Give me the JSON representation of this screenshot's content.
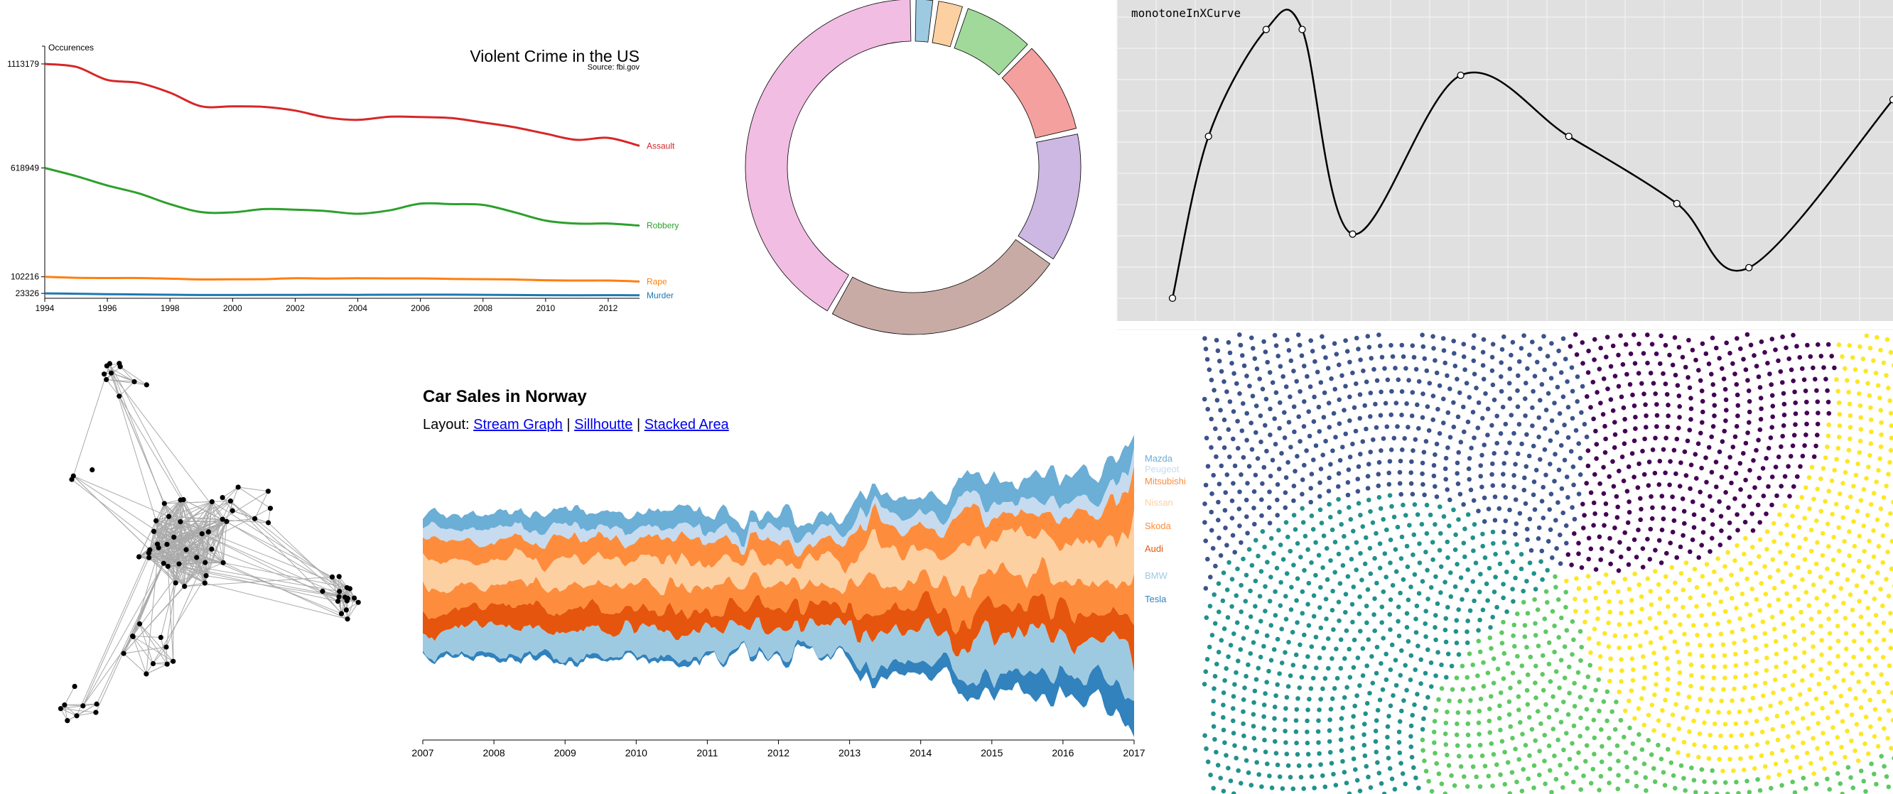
{
  "crime": {
    "chart_data": {
      "type": "line",
      "title": "Violent Crime in the US",
      "subtitle": "Source: fbi.gov",
      "ylabel": "Occurences",
      "x": [
        1994,
        1995,
        1996,
        1997,
        1998,
        1999,
        2000,
        2001,
        2002,
        2003,
        2004,
        2005,
        2006,
        2007,
        2008,
        2009,
        2010,
        2011,
        2012,
        2013
      ],
      "x_ticks": [
        "1994",
        "1996",
        "1998",
        "2000",
        "2002",
        "2004",
        "2006",
        "2008",
        "2010",
        "2012"
      ],
      "y_ticks": [
        "1113179",
        "618949",
        "102216",
        "23326"
      ],
      "ylim": [
        0,
        1113179
      ],
      "series": [
        {
          "name": "Assault",
          "color": "#d62728",
          "values": [
            1113179,
            1099207,
            1037049,
            1023201,
            976583,
            911740,
            911706,
            909023,
            891407,
            859030,
            847381,
            862220,
            860853,
            855856,
            834885,
            812514,
            781844,
            752423,
            762009,
            724149
          ]
        },
        {
          "name": "Robbery",
          "color": "#2ca02c",
          "values": [
            618949,
            580509,
            535594,
            498534,
            447186,
            409371,
            408016,
            423557,
            420806,
            414235,
            401470,
            417438,
            449246,
            447324,
            443563,
            408742,
            369089,
            354746,
            355051,
            345031
          ]
        },
        {
          "name": "Rape",
          "color": "#ff7f0e",
          "values": [
            102216,
            97470,
            96252,
            96153,
            93144,
            89411,
            90178,
            90863,
            95235,
            93883,
            95089,
            94347,
            94472,
            92160,
            90750,
            89241,
            85593,
            84175,
            84376,
            79770
          ]
        },
        {
          "name": "Murder",
          "color": "#1f77b4",
          "values": [
            23326,
            21606,
            19645,
            18208,
            16974,
            15522,
            15586,
            16037,
            16229,
            16528,
            16148,
            16740,
            17309,
            17128,
            16465,
            15399,
            14722,
            14661,
            14866,
            14196
          ]
        }
      ]
    }
  },
  "donut": {
    "chart_data": {
      "type": "pie",
      "values": [
        3,
        4,
        10,
        13,
        18,
        33,
        58
      ],
      "colors": [
        "#9ecae1",
        "#fdd0a2",
        "#a1d99b",
        "#f4a09f",
        "#ccb8e2",
        "#c9aba6",
        "#f2bde2"
      ]
    }
  },
  "curve": {
    "label": "monotoneInXCurve",
    "chart_data": {
      "type": "line",
      "x": [
        0,
        0.05,
        0.13,
        0.18,
        0.25,
        0.4,
        0.55,
        0.7,
        0.8,
        1.0
      ],
      "y": [
        0.07,
        0.6,
        0.95,
        0.95,
        0.28,
        0.8,
        0.6,
        0.38,
        0.17,
        0.72
      ],
      "xlim": [
        0,
        1
      ],
      "ylim": [
        0,
        1
      ],
      "grid": true
    }
  },
  "network": {
    "chart_data": {
      "type": "network",
      "node_count": 90
    }
  },
  "cars": {
    "title": "Car Sales in Norway",
    "layout_label": "Layout:",
    "links": [
      "Stream Graph",
      "Sillhoutte",
      "Stacked Area"
    ],
    "separator": "|",
    "chart_data": {
      "type": "area",
      "layout": "stream",
      "x_ticks": [
        "2007",
        "2008",
        "2009",
        "2010",
        "2011",
        "2012",
        "2013",
        "2014",
        "2015",
        "2016",
        "2017"
      ],
      "series": [
        {
          "name": "Tesla",
          "color": "#3182bd"
        },
        {
          "name": "BMW",
          "color": "#9ecae1"
        },
        {
          "name": "Audi",
          "color": "#e6550d"
        },
        {
          "name": "Skoda",
          "color": "#fd8d3c"
        },
        {
          "name": "Nissan",
          "color": "#fdd0a2"
        },
        {
          "name": "Mitsubishi",
          "color": "#fd8d3c"
        },
        {
          "name": "Peugeot",
          "color": "#c6dbef"
        },
        {
          "name": "Mazda",
          "color": "#6baed6"
        }
      ]
    }
  },
  "spiral": {
    "chart_data": {
      "type": "scatter",
      "layout": "phyllotaxis",
      "colors": [
        "#440154",
        "#3b528b",
        "#21918c",
        "#5ec962",
        "#fde725"
      ]
    }
  }
}
